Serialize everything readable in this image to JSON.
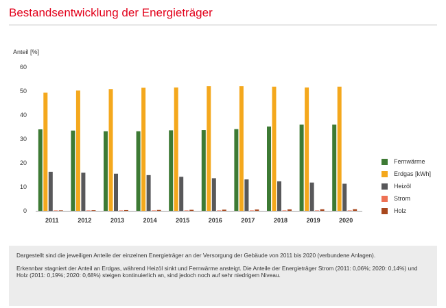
{
  "title": "Bestandsentwicklung der Energieträger",
  "note": {
    "paragraph_1": "Dargestellt sind die jeweiligen Anteile der einzelnen Energieträger an der Versorgung der Gebäude von 2011 bis 2020 (verbundene Anlagen).",
    "paragraph_2": "Erkennbar stagniert der Anteil an Erdgas, während Heizöl sinkt und Fernwärme ansteigt. Die Anteile der Energieträger Strom (2011: 0,06%; 2020: 0,14%) und Holz (2011: 0,19%; 2020: 0,68%) steigen kontinuierlich an, sind jedoch noch auf sehr niedrigem Niveau."
  },
  "chart_data": {
    "type": "bar",
    "ylabel": "Anteil [%]",
    "ylim": [
      0,
      60
    ],
    "yticks": [
      0,
      10,
      20,
      30,
      40,
      50,
      60
    ],
    "grid": false,
    "legend_position": "right",
    "categories": [
      "2011",
      "2012",
      "2013",
      "2014",
      "2015",
      "2016",
      "2017",
      "2018",
      "2019",
      "2020"
    ],
    "series": [
      {
        "name": "Fernwärme",
        "color": "#3d7a34",
        "values": [
          34.0,
          33.5,
          33.2,
          33.2,
          33.6,
          33.7,
          34.1,
          35.2,
          36.0,
          36.0
        ]
      },
      {
        "name": "Erdgas [kWh]",
        "color": "#f4a81d",
        "values": [
          49.3,
          50.2,
          50.8,
          51.4,
          51.5,
          52.0,
          52.0,
          51.8,
          51.5,
          51.8
        ]
      },
      {
        "name": "Heizöl",
        "color": "#58585a",
        "values": [
          16.3,
          15.9,
          15.5,
          14.9,
          14.2,
          13.6,
          13.1,
          12.3,
          11.8,
          11.3
        ]
      },
      {
        "name": "Strom",
        "color": "#ee7154",
        "values": [
          0.06,
          0.07,
          0.08,
          0.09,
          0.1,
          0.11,
          0.12,
          0.12,
          0.13,
          0.14
        ]
      },
      {
        "name": "Holz",
        "color": "#a8471d",
        "values": [
          0.19,
          0.25,
          0.3,
          0.36,
          0.42,
          0.48,
          0.54,
          0.6,
          0.64,
          0.68
        ]
      }
    ]
  }
}
